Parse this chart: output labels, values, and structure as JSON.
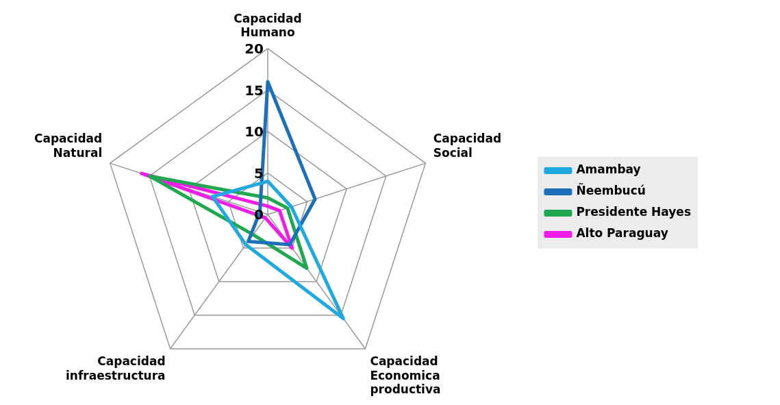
{
  "chart_data": {
    "type": "radar",
    "categories": [
      "Capacidad Humano",
      "Capacidad Social",
      "Capacidad Economica productiva",
      "Capacidad infraestructura",
      "Capacidad Natural"
    ],
    "ylim": [
      0,
      20
    ],
    "yticks": [
      0,
      5,
      10,
      15,
      20
    ],
    "legend": "right",
    "marker": "none",
    "series": [
      {
        "name": "Amambay",
        "color": "#1fa9e0",
        "values": [
          4,
          3,
          15.5,
          4.5,
          7
        ]
      },
      {
        "name": "Ñeembucú",
        "color": "#1c6fb8",
        "values": [
          16,
          6,
          4.5,
          4,
          1
        ]
      },
      {
        "name": "Presidente Hayes",
        "color": "#20a850",
        "values": [
          2,
          2.5,
          8,
          3,
          15
        ]
      },
      {
        "name": "Alto Paraguay",
        "color": "#f01ce8",
        "values": [
          1,
          1.5,
          5,
          0.5,
          16
        ]
      }
    ]
  }
}
